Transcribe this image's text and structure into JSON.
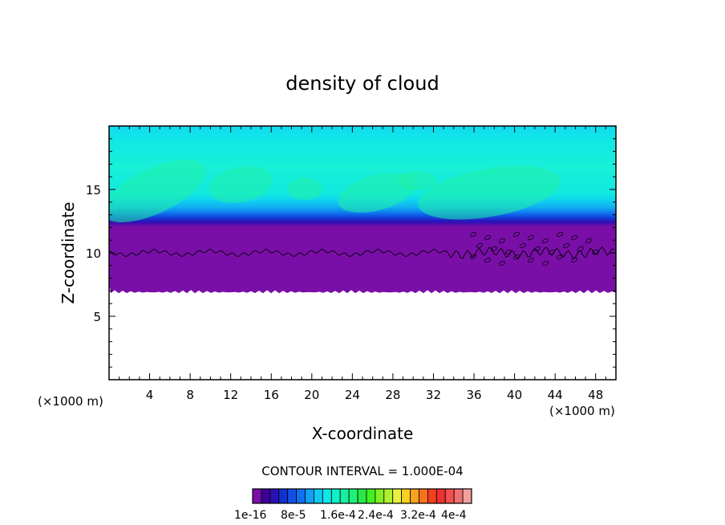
{
  "chart_data": {
    "type": "heatmap",
    "title": "density of cloud",
    "xlabel": "X-coordinate",
    "ylabel": "Z-coordinate",
    "x_unit_left": "(×1000 m)",
    "x_unit_right": "(×1000 m)",
    "xlim": [
      0,
      50
    ],
    "ylim": [
      0,
      20
    ],
    "x_ticks": [
      4,
      8,
      12,
      16,
      20,
      24,
      28,
      32,
      36,
      40,
      44,
      48
    ],
    "y_ticks": [
      5,
      10,
      15
    ],
    "contour_interval_text": "CONTOUR INTERVAL = 1.000E-04",
    "colorbar": {
      "colors": [
        "#7a0fa8",
        "#3c0095",
        "#2a10b5",
        "#1030d0",
        "#1050e8",
        "#1070f0",
        "#10a0f5",
        "#10c8f0",
        "#10e8e8",
        "#10f0c8",
        "#18f0a0",
        "#20f078",
        "#28e848",
        "#40f020",
        "#80f020",
        "#b0f030",
        "#e8f040",
        "#f8d020",
        "#f8a020",
        "#f87020",
        "#f04020",
        "#f03030",
        "#f05050",
        "#f07070",
        "#f0a0a0"
      ],
      "labels": [
        "1e-16",
        "8e-5",
        "1.6e-4",
        "2.4e-4",
        "3.2e-4",
        "4e-4"
      ]
    },
    "fields": {
      "cloud_base_km": 7.2,
      "contour_level_km": 10.0,
      "cloud_top_km": 20
    }
  }
}
